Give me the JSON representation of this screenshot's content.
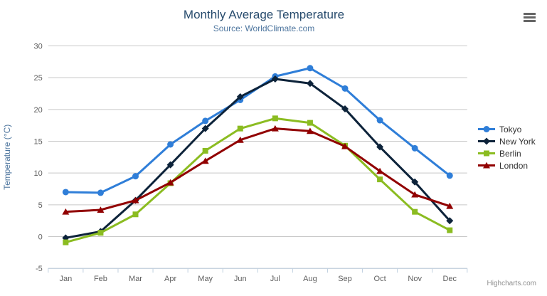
{
  "header": {
    "title": "Monthly Average Temperature",
    "subtitle": "Source: WorldClimate.com"
  },
  "export_menu": {
    "icon": "hamburger-icon"
  },
  "credits": {
    "label": "Highcharts.com"
  },
  "chart_data": {
    "type": "line",
    "title": "Monthly Average Temperature",
    "subtitle": "Source: WorldClimate.com",
    "categories": [
      "Jan",
      "Feb",
      "Mar",
      "Apr",
      "May",
      "Jun",
      "Jul",
      "Aug",
      "Sep",
      "Oct",
      "Nov",
      "Dec"
    ],
    "series": [
      {
        "name": "Tokyo",
        "color": "#2f7ed8",
        "marker": "circle",
        "values": [
          7.0,
          6.9,
          9.5,
          14.5,
          18.2,
          21.5,
          25.2,
          26.5,
          23.3,
          18.3,
          13.9,
          9.6
        ]
      },
      {
        "name": "New York",
        "color": "#0d233a",
        "marker": "diamond",
        "values": [
          -0.2,
          0.8,
          5.7,
          11.3,
          17.0,
          22.0,
          24.8,
          24.1,
          20.1,
          14.1,
          8.6,
          2.5
        ]
      },
      {
        "name": "Berlin",
        "color": "#8bbc21",
        "marker": "square",
        "values": [
          -0.9,
          0.6,
          3.5,
          8.4,
          13.5,
          17.0,
          18.6,
          17.9,
          14.3,
          9.0,
          3.9,
          1.0
        ]
      },
      {
        "name": "London",
        "color": "#910000",
        "marker": "triangle",
        "values": [
          3.9,
          4.2,
          5.7,
          8.5,
          11.9,
          15.2,
          17.0,
          16.6,
          14.2,
          10.3,
          6.6,
          4.8
        ]
      }
    ],
    "xlabel": "",
    "ylabel": "Temperature (°C)",
    "ylim": [
      -5,
      30
    ],
    "y_ticks": [
      -5,
      0,
      5,
      10,
      15,
      20,
      25,
      30
    ],
    "grid": true,
    "legend_position": "right-middle"
  },
  "style": {
    "grid_color": "#c8c8c8",
    "axis_color": "#c0d0e0",
    "label_color": "#606060",
    "axis_title_color": "#4d759e",
    "title_color": "#274b6d",
    "subtitle_color": "#4d759e",
    "legend_text_color": "#333333",
    "credits_color": "#909090"
  }
}
